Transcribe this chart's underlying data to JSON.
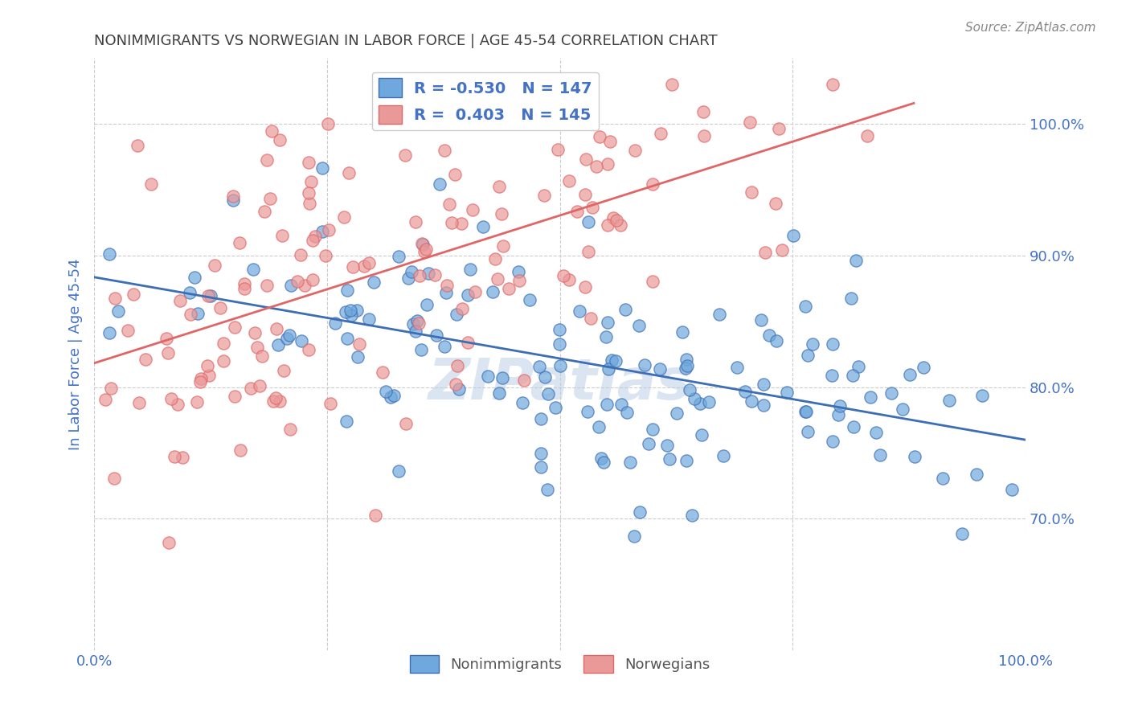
{
  "title": "NONIMMIGRANTS VS NORWEGIAN IN LABOR FORCE | AGE 45-54 CORRELATION CHART",
  "source": "Source: ZipAtlas.com",
  "ylabel": "In Labor Force | Age 45-54",
  "xlim": [
    0.0,
    1.0
  ],
  "ylim": [
    0.6,
    1.05
  ],
  "nonimmigrant_R": -0.53,
  "nonimmigrant_N": 147,
  "norwegian_R": 0.403,
  "norwegian_N": 145,
  "blue_color": "#6fa8dc",
  "pink_color": "#ea9999",
  "blue_line_color": "#3d6eb5",
  "pink_line_color": "#e06666",
  "watermark": "ZIPatlas",
  "background_color": "#ffffff",
  "grid_color": "#cccccc",
  "title_color": "#404040",
  "axis_label_color": "#4472c4",
  "tick_label_color": "#4472c4",
  "legend_R_color": "#4472c4"
}
